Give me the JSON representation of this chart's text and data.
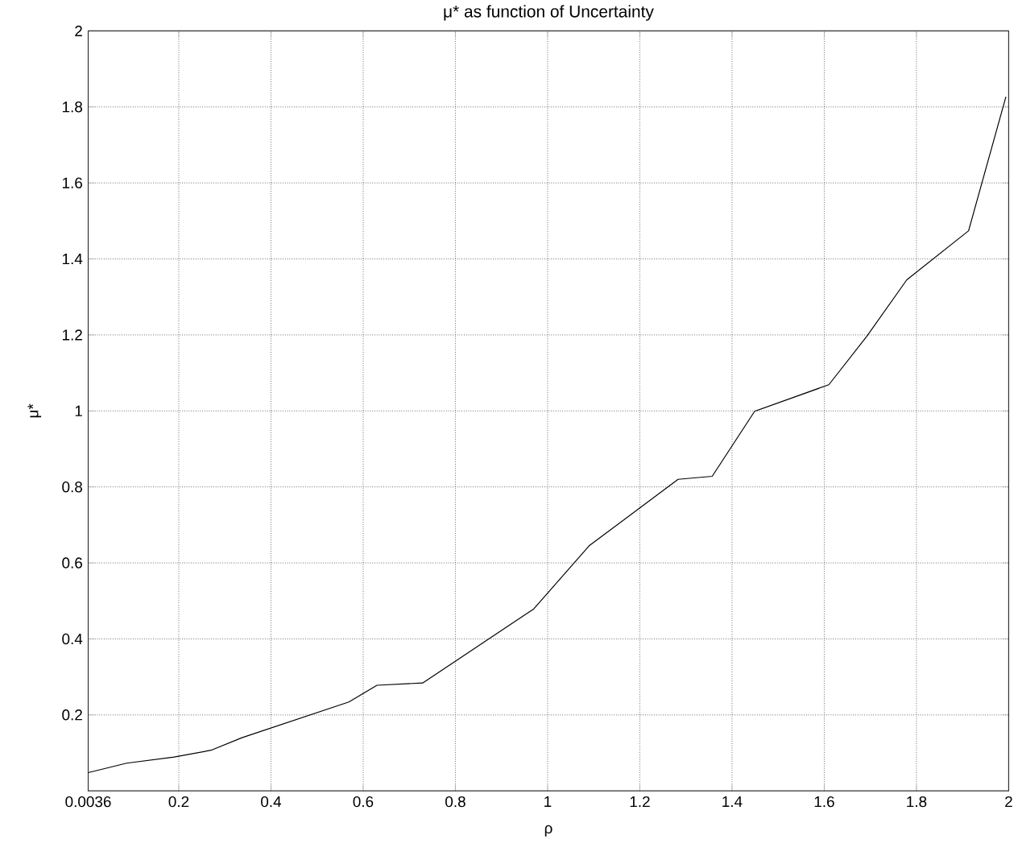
{
  "chart_data": {
    "type": "line",
    "title": "μ*  as function of Uncertainty",
    "xlabel": "ρ",
    "ylabel": "μ*",
    "x": [
      0.0036,
      0.087,
      0.19,
      0.27,
      0.337,
      0.569,
      0.63,
      0.729,
      0.97,
      1.09,
      1.283,
      1.357,
      1.449,
      1.61,
      1.692,
      1.779,
      1.913,
      1.994
    ],
    "series": [
      {
        "color": "#000000",
        "values": [
          0.048,
          0.073,
          0.089,
          0.107,
          0.14,
          0.234,
          0.278,
          0.284,
          0.479,
          0.645,
          0.82,
          0.828,
          0.999,
          1.069,
          1.196,
          1.345,
          1.474,
          1.827
        ]
      }
    ],
    "xlim": [
      0.0036,
      2
    ],
    "ylim": [
      0,
      2
    ],
    "xticks": [
      0.0036,
      0.2,
      0.4,
      0.6,
      0.8,
      1,
      1.2,
      1.4,
      1.6,
      1.8,
      2
    ],
    "yticks": [
      0.2,
      0.4,
      0.6,
      0.8,
      1,
      1.2,
      1.4,
      1.6,
      1.8,
      2
    ],
    "grid": true,
    "marker": "none",
    "line_style": "solid"
  }
}
